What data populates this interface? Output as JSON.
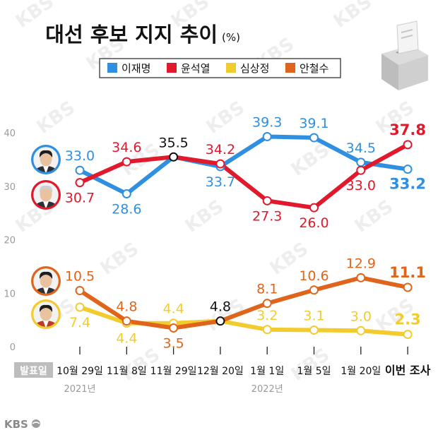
{
  "header": {
    "title": "대선 후보 지지 추이",
    "unit": "(%)"
  },
  "branding": {
    "watermark": "KBS",
    "logo_text": "KBS"
  },
  "chart_data": {
    "type": "line",
    "title": "대선 후보 지지 추이 (%)",
    "xlabel": "발표일",
    "ylabel": "",
    "ylim": [
      0,
      45
    ],
    "yticks": [
      0,
      10,
      20,
      30,
      40
    ],
    "grid": false,
    "legend_position": "top-center",
    "categories": [
      "10월 29일",
      "11월 8일",
      "11월 29일",
      "12월 20일",
      "1월 1일",
      "1월 5일",
      "1월 20일",
      "이번 조사"
    ],
    "year_labels": [
      {
        "label": "2021년",
        "category_index": 0
      },
      {
        "label": "2022년",
        "category_index": 4
      }
    ],
    "series": [
      {
        "name": "이재명",
        "color": "#2f8fe0",
        "values": [
          33.0,
          28.6,
          35.5,
          33.7,
          39.3,
          39.1,
          34.5,
          33.2
        ]
      },
      {
        "name": "윤석열",
        "color": "#e0192d",
        "values": [
          30.7,
          34.6,
          35.5,
          34.2,
          27.3,
          26.0,
          33.0,
          37.8
        ]
      },
      {
        "name": "심상정",
        "color": "#f2cc2e",
        "values": [
          7.4,
          4.4,
          4.4,
          4.8,
          3.2,
          3.1,
          3.0,
          2.3
        ]
      },
      {
        "name": "안철수",
        "color": "#e0651c",
        "values": [
          10.5,
          4.8,
          3.5,
          4.8,
          8.1,
          10.6,
          12.9,
          11.1
        ]
      }
    ],
    "data_labels": [
      {
        "series": 0,
        "i": 0,
        "text": "33.0",
        "pos": "above"
      },
      {
        "series": 0,
        "i": 1,
        "text": "28.6",
        "pos": "below"
      },
      {
        "series": 0,
        "i": 3,
        "text": "33.7",
        "pos": "below"
      },
      {
        "series": 0,
        "i": 4,
        "text": "39.3",
        "pos": "above"
      },
      {
        "series": 0,
        "i": 5,
        "text": "39.1",
        "pos": "above"
      },
      {
        "series": 0,
        "i": 6,
        "text": "34.5",
        "pos": "above"
      },
      {
        "series": 0,
        "i": 7,
        "text": "33.2",
        "pos": "below",
        "emphasis": true
      },
      {
        "series": 1,
        "i": 0,
        "text": "30.7",
        "pos": "below"
      },
      {
        "series": 1,
        "i": 1,
        "text": "34.6",
        "pos": "above"
      },
      {
        "series": 1,
        "i": 3,
        "text": "34.2",
        "pos": "above"
      },
      {
        "series": 1,
        "i": 4,
        "text": "27.3",
        "pos": "below"
      },
      {
        "series": 1,
        "i": 5,
        "text": "26.0",
        "pos": "below"
      },
      {
        "series": 1,
        "i": 6,
        "text": "33.0",
        "pos": "below"
      },
      {
        "series": 1,
        "i": 7,
        "text": "37.8",
        "pos": "above",
        "emphasis": true
      },
      {
        "series": 2,
        "i": 0,
        "text": "7.4",
        "pos": "below"
      },
      {
        "series": 2,
        "i": 1,
        "text": "4.4",
        "pos": "below"
      },
      {
        "series": 2,
        "i": 2,
        "text": "4.4",
        "pos": "above"
      },
      {
        "series": 2,
        "i": 4,
        "text": "3.2",
        "pos": "above"
      },
      {
        "series": 2,
        "i": 5,
        "text": "3.1",
        "pos": "above"
      },
      {
        "series": 2,
        "i": 6,
        "text": "3.0",
        "pos": "above"
      },
      {
        "series": 2,
        "i": 7,
        "text": "2.3",
        "pos": "above",
        "emphasis": true
      },
      {
        "series": 3,
        "i": 0,
        "text": "10.5",
        "pos": "above"
      },
      {
        "series": 3,
        "i": 1,
        "text": "4.8",
        "pos": "above"
      },
      {
        "series": 3,
        "i": 2,
        "text": "3.5",
        "pos": "below"
      },
      {
        "series": 3,
        "i": 4,
        "text": "8.1",
        "pos": "above"
      },
      {
        "series": 3,
        "i": 5,
        "text": "10.6",
        "pos": "above"
      },
      {
        "series": 3,
        "i": 6,
        "text": "12.9",
        "pos": "above"
      },
      {
        "series": 3,
        "i": 7,
        "text": "11.1",
        "pos": "above",
        "emphasis": true
      }
    ],
    "tie_labels": [
      {
        "i": 2,
        "series": [
          0,
          1
        ],
        "text": "35.5",
        "pos": "above"
      },
      {
        "i": 3,
        "series": [
          2,
          3
        ],
        "text": "4.8",
        "pos": "above"
      }
    ],
    "candidate_photos": [
      {
        "series": 0,
        "name": "이재명"
      },
      {
        "series": 1,
        "name": "윤석열"
      },
      {
        "series": 3,
        "name": "안철수"
      },
      {
        "series": 2,
        "name": "심상정"
      }
    ]
  }
}
